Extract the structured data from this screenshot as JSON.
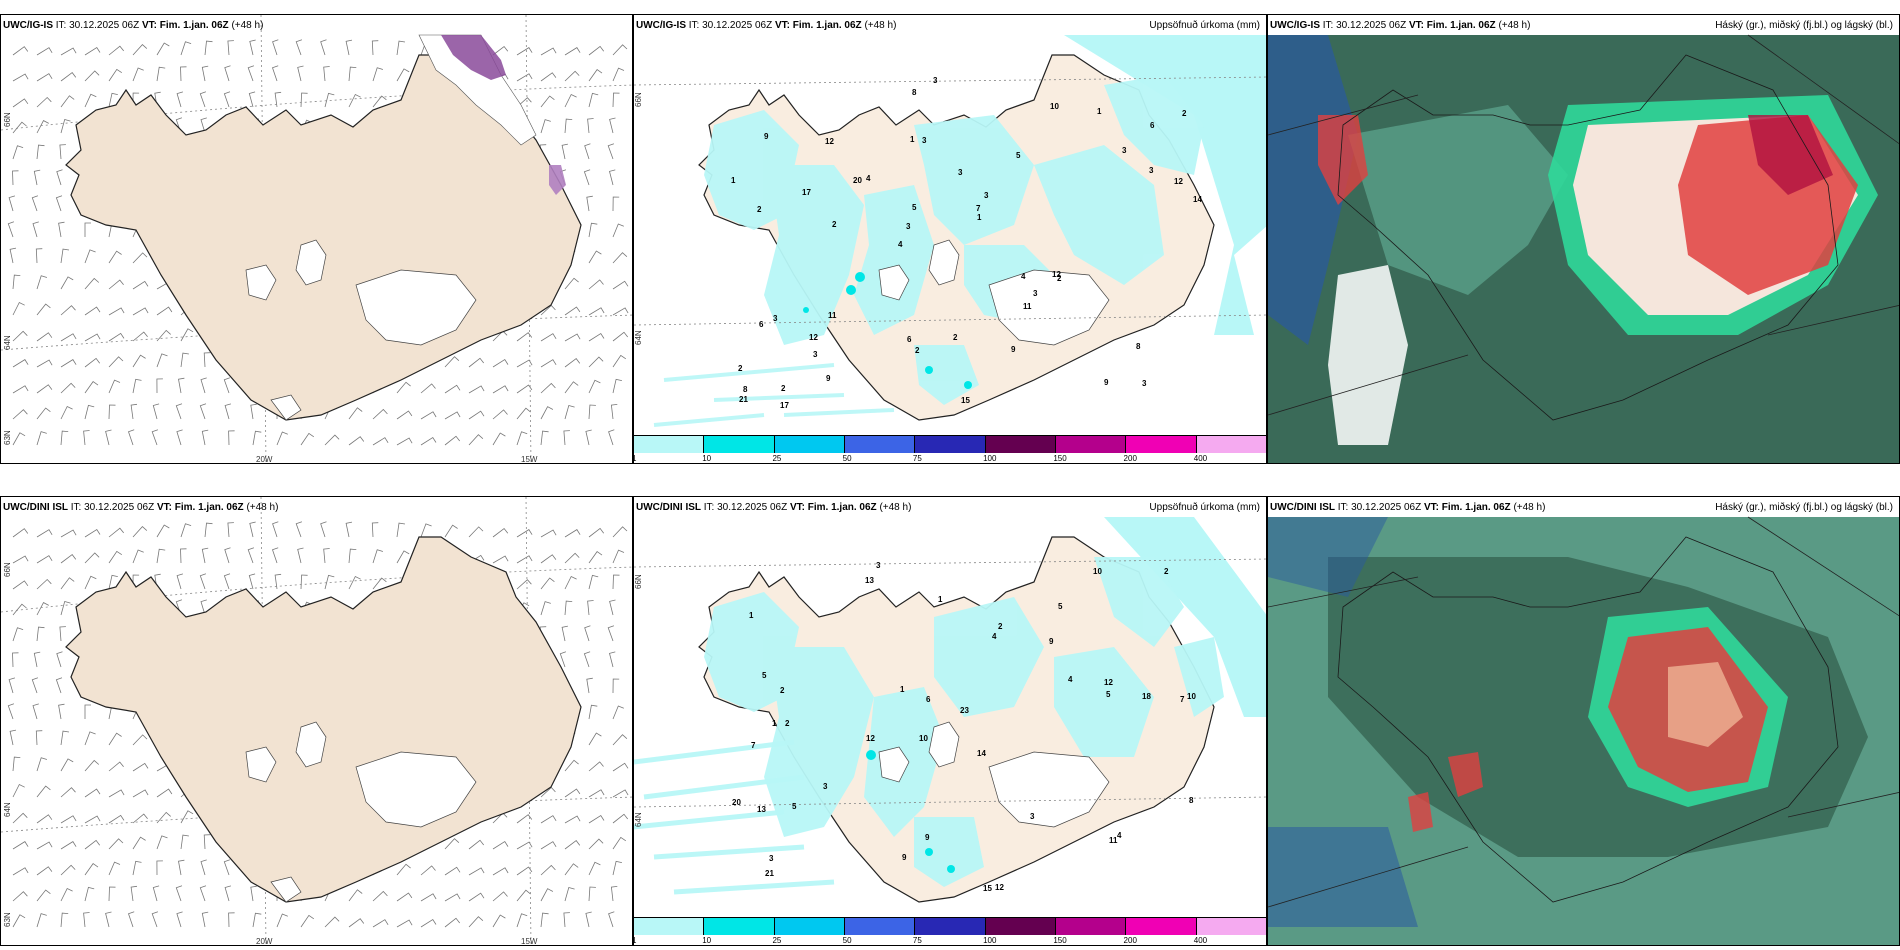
{
  "panels": {
    "top_wind": {
      "model": "UWC/IG-IS",
      "it": "IT: 30.12.2025 06Z",
      "vt_label": "VT:",
      "vt": "Fim. 1.jan. 06Z",
      "lead": "(+48 h)"
    },
    "top_precip": {
      "model": "UWC/IG-IS",
      "it": "IT: 30.12.2025 06Z",
      "vt_label": "VT:",
      "vt": "Fim. 1.jan. 06Z",
      "lead": "(+48 h)",
      "right_title": "Uppsöfnuð úrkoma (mm)"
    },
    "top_cloud": {
      "model": "UWC/IG-IS",
      "it": "IT: 30.12.2025 06Z",
      "vt_label": "VT:",
      "vt": "Fim. 1.jan. 06Z",
      "lead": "(+48 h)",
      "right_title": "Háský (gr.), miðský (fj.bl.) og lágský (bl.)"
    },
    "bot_wind": {
      "model": "UWC/DINI ISL",
      "it": "IT: 30.12.2025 06Z",
      "vt_label": "VT:",
      "vt": "Fim. 1.jan. 06Z",
      "lead": "(+48 h)"
    },
    "bot_precip": {
      "model": "UWC/DINI ISL",
      "it": "IT: 30.12.2025 06Z",
      "vt_label": "VT:",
      "vt": "Fim. 1.jan. 06Z",
      "lead": "(+48 h)",
      "right_title": "Uppsöfnuð úrkoma (mm)"
    },
    "bot_cloud": {
      "model": "UWC/DINI ISL",
      "it": "IT: 30.12.2025 06Z",
      "vt_label": "VT:",
      "vt": "Fim. 1.jan. 06Z",
      "lead": "(+48 h)",
      "right_title": "Háský (gr.), miðský (fj.bl.) og lágský (bl.)"
    }
  },
  "axis_labels": {
    "lon_20w": "20W",
    "lon_15w": "15W",
    "lat_66n": "66N",
    "lat_64n": "64N",
    "lat_63n": "63N"
  },
  "colorbar": {
    "labels": [
      "1",
      "10",
      "25",
      "50",
      "75",
      "100",
      "150",
      "200",
      "400"
    ],
    "colors": [
      "#b8f7f7",
      "#00e6e6",
      "#00c8f0",
      "#3c64e6",
      "#2828b4",
      "#640050",
      "#b4008c",
      "#f000b4",
      "#f5aaf0"
    ]
  },
  "precip_values_top": [
    "3",
    "2",
    "6",
    "4",
    "5",
    "2",
    "1",
    "3",
    "3",
    "4",
    "2",
    "3",
    "3",
    "3",
    "2",
    "9",
    "8",
    "14",
    "4",
    "3",
    "3",
    "6",
    "5",
    "12",
    "10",
    "11",
    "9",
    "8",
    "12",
    "15",
    "20",
    "17",
    "11",
    "9",
    "12",
    "7",
    "8",
    "2",
    "1",
    "6",
    "3",
    "2",
    "3",
    "9",
    "12",
    "17",
    "21",
    "2",
    "1",
    "3",
    "2",
    "1"
  ],
  "precip_values_bot": [
    "3",
    "5",
    "7",
    "10",
    "14",
    "2",
    "1",
    "9",
    "7",
    "4",
    "23",
    "21",
    "13",
    "12",
    "15",
    "12",
    "9",
    "10",
    "4",
    "3",
    "2",
    "1",
    "10",
    "18",
    "20",
    "5",
    "6",
    "5",
    "4",
    "13",
    "11",
    "2",
    "5",
    "1",
    "3",
    "8",
    "12",
    "9",
    "2",
    "1",
    "3"
  ],
  "colors": {
    "land": "#f2e3d2",
    "precip_light": "#b8f7f7",
    "precip_mid": "#00e6e6",
    "cloud_high": "#3a6a58",
    "cloud_mid": "#5aa08a",
    "cloud_low": "#2a5aa0",
    "cloud_red": "#e04040",
    "cloud_bright": "#30d89a"
  }
}
